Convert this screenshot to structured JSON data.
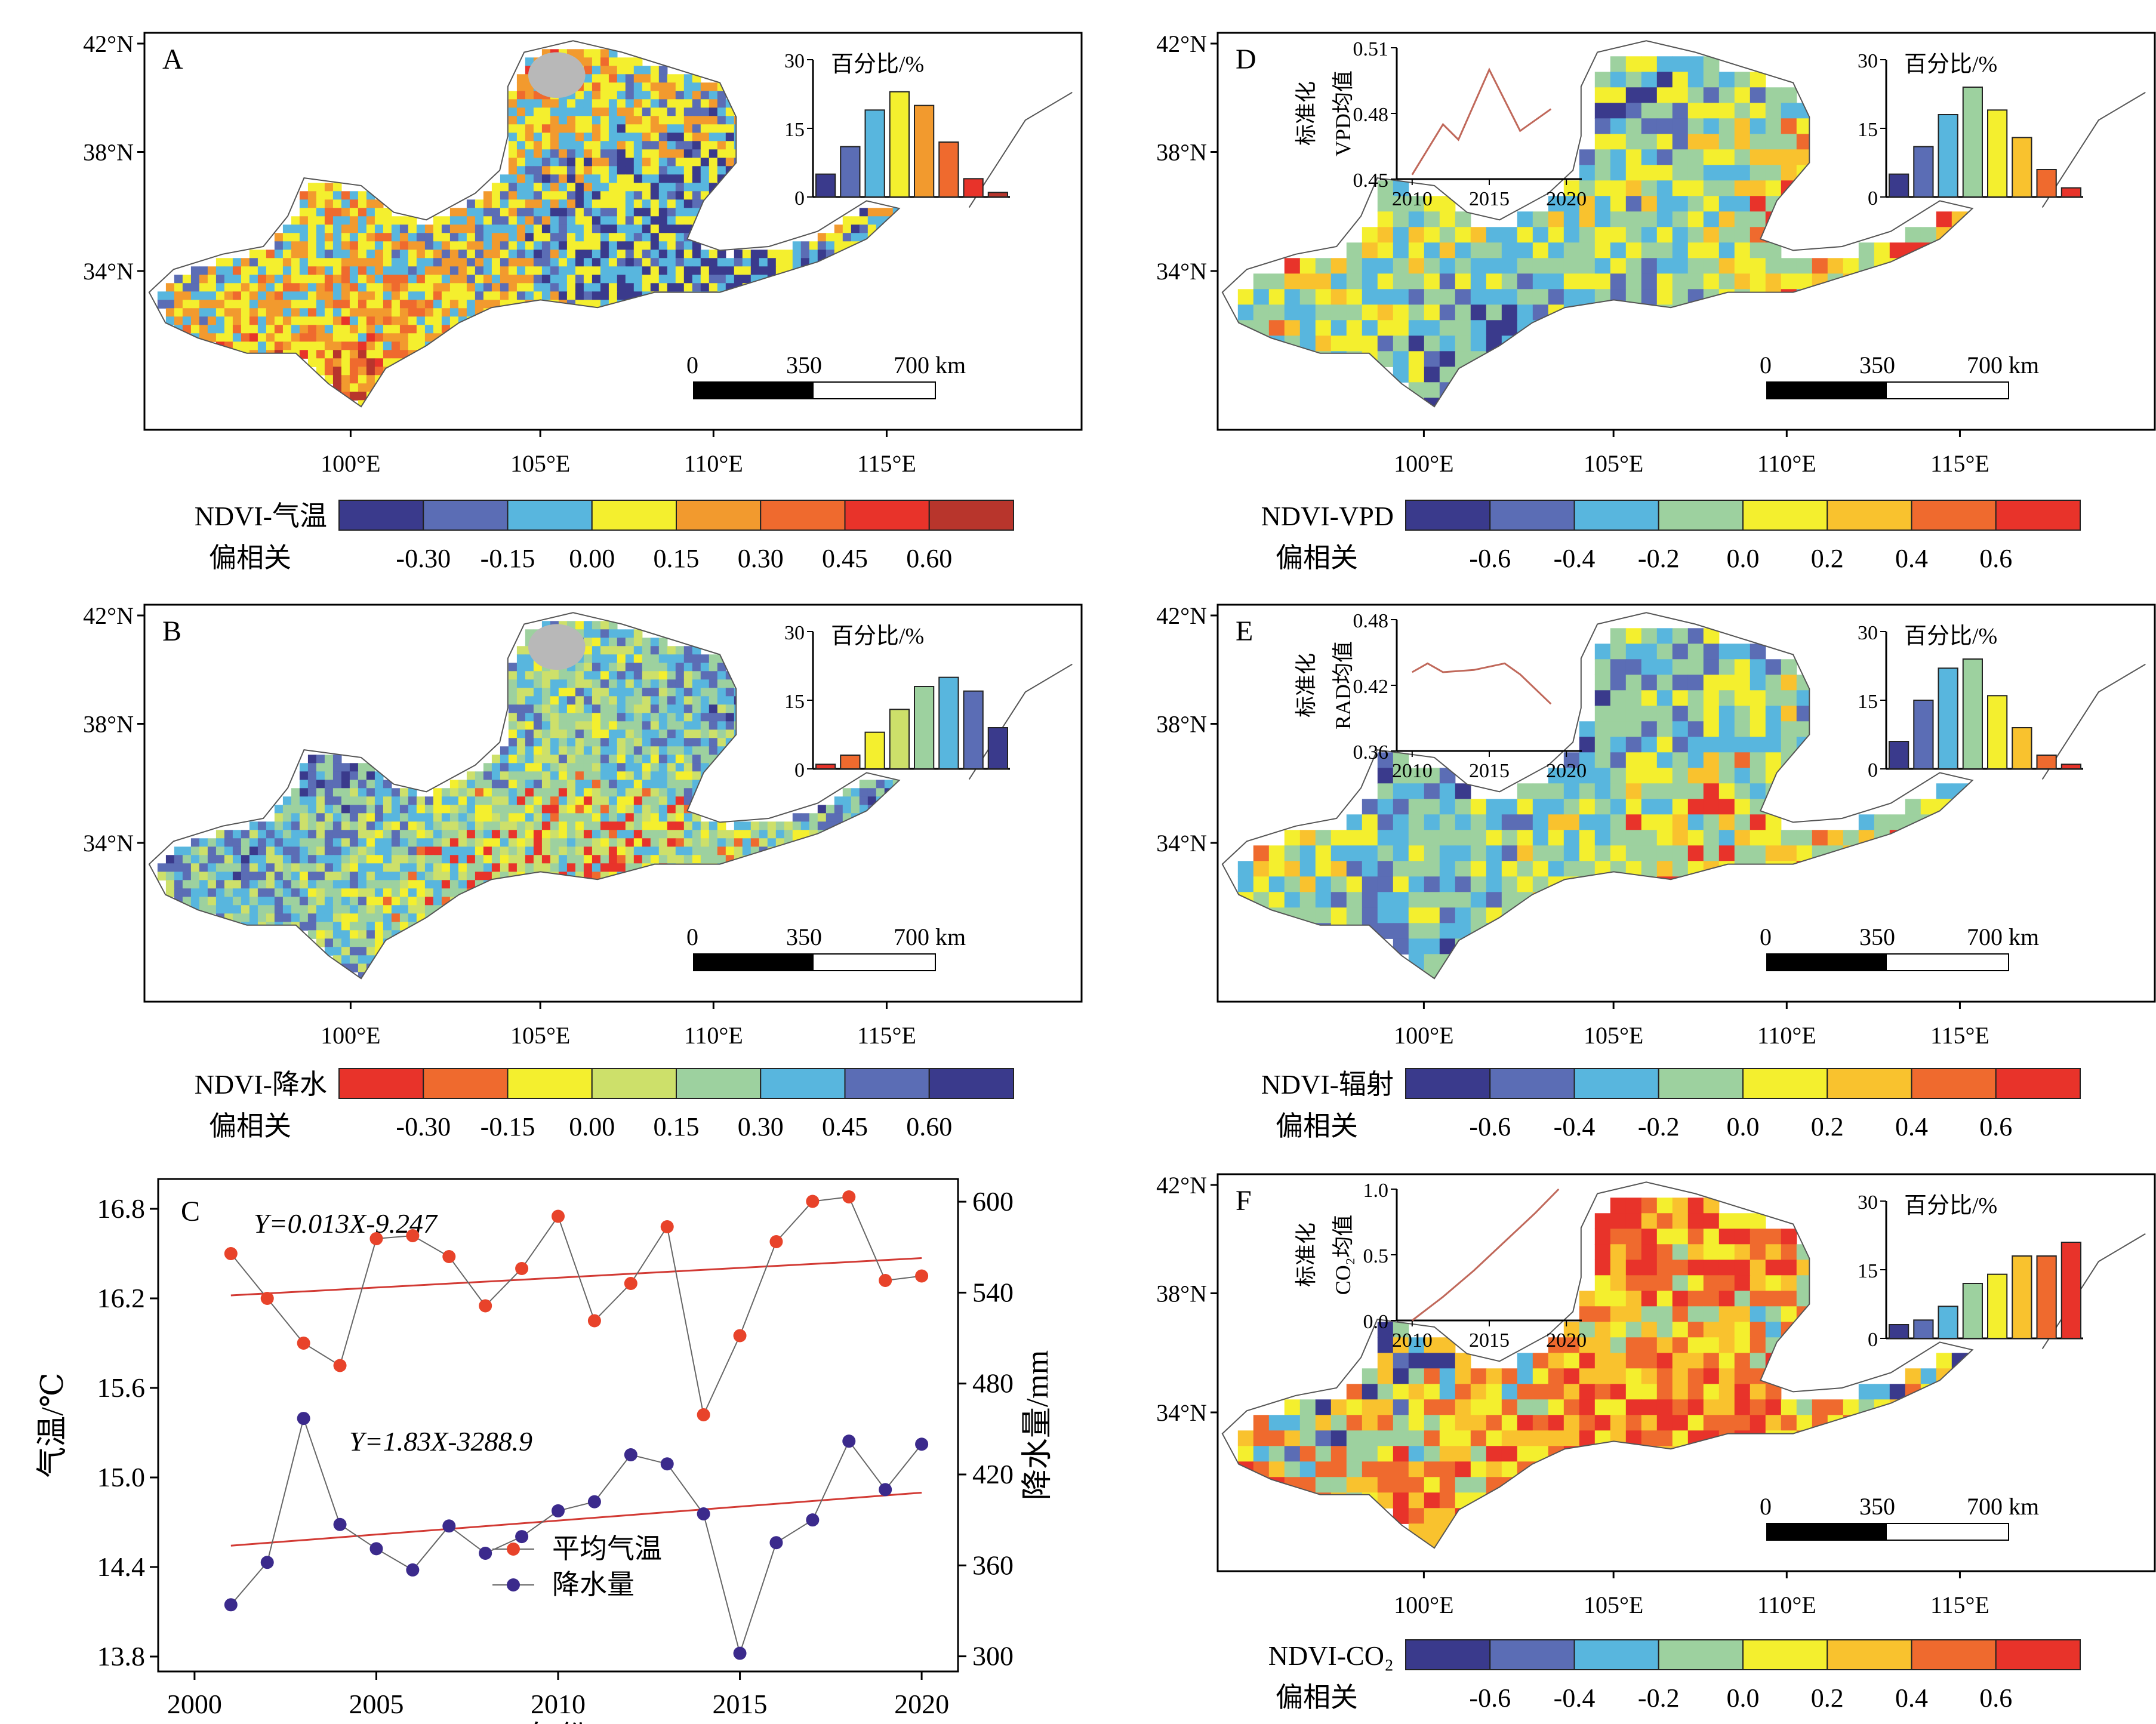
{
  "colors": {
    "corr8": [
      "#3a3a8c",
      "#5b6db5",
      "#58b6de",
      "#f4ef2e",
      "#f29a2e",
      "#ef6a2e",
      "#e8332a",
      "#b8352c"
    ],
    "precip8": [
      "#e8332a",
      "#ef6a2e",
      "#f4ef2e",
      "#cde06a",
      "#9dd19f",
      "#58b6de",
      "#5b6db5",
      "#3a3a8c"
    ],
    "vpd8": [
      "#3a3a8c",
      "#5b6db5",
      "#58b6de",
      "#9dd19f",
      "#f4ef2e",
      "#f9c22e",
      "#ef6a2e",
      "#e8332a"
    ],
    "temp_series": "#e8432a",
    "precip_series": "#3b2a8c",
    "trend": "#d23a34",
    "inset_curve": "#c0685a",
    "nodata": "#b8b8b8"
  },
  "panels": [
    {
      "letter": "A",
      "lat_ticks": [
        "42°N",
        "38°N",
        "34°N"
      ],
      "lon_ticks": [
        "100°E",
        "105°E",
        "110°E",
        "115°E"
      ],
      "scale_labels": [
        "0",
        "350",
        "700 km"
      ],
      "hist_title": "百分比/%",
      "hist_ticks": [
        "30",
        "15",
        "0"
      ],
      "hist_values": [
        5,
        11,
        19,
        23,
        20,
        12,
        4,
        1
      ],
      "legend_title": "NDVI-气温",
      "legend_sub": "偏相关",
      "legend_ticks": [
        "-0.30",
        "-0.15",
        "0.00",
        "0.15",
        "0.30",
        "0.45",
        "0.60"
      ],
      "palette": "corr8"
    },
    {
      "letter": "B",
      "lat_ticks": [
        "42°N",
        "38°N",
        "34°N"
      ],
      "lon_ticks": [
        "100°E",
        "105°E",
        "110°E",
        "115°E"
      ],
      "scale_labels": [
        "0",
        "350",
        "700 km"
      ],
      "hist_title": "百分比/%",
      "hist_ticks": [
        "30",
        "15",
        "0"
      ],
      "hist_values": [
        1,
        3,
        8,
        13,
        18,
        20,
        17,
        9
      ],
      "legend_title": "NDVI-降水",
      "legend_sub": "偏相关",
      "legend_ticks": [
        "-0.30",
        "-0.15",
        "0.00",
        "0.15",
        "0.30",
        "0.45",
        "0.60"
      ],
      "palette": "precip8"
    },
    {
      "letter": "D",
      "lat_ticks": [
        "42°N",
        "38°N",
        "34°N"
      ],
      "lon_ticks": [
        "100°E",
        "105°E",
        "110°E",
        "115°E"
      ],
      "scale_labels": [
        "0",
        "350",
        "700 km"
      ],
      "hist_title": "百分比/%",
      "hist_ticks": [
        "30",
        "15",
        "0"
      ],
      "hist_values": [
        5,
        11,
        18,
        24,
        19,
        13,
        6,
        2
      ],
      "inset_ylabel1": "标准化",
      "inset_ylabel2": "VPD均值",
      "inset_yticks": [
        "0.51",
        "0.48",
        "0.45"
      ],
      "inset_xticks": [
        "2010",
        "2015",
        "2020"
      ],
      "inset_curve": [
        [
          2010,
          0.452
        ],
        [
          2012,
          0.475
        ],
        [
          2013,
          0.468
        ],
        [
          2015,
          0.5
        ],
        [
          2017,
          0.472
        ],
        [
          2019,
          0.482
        ]
      ],
      "inset_ylim": [
        0.45,
        0.51
      ],
      "legend_title": "NDVI-VPD",
      "legend_sub": "偏相关",
      "legend_ticks": [
        "-0.6",
        "-0.4",
        "-0.2",
        "0.0",
        "0.2",
        "0.4",
        "0.6"
      ],
      "palette": "vpd8"
    },
    {
      "letter": "E",
      "lat_ticks": [
        "42°N",
        "38°N",
        "34°N"
      ],
      "lon_ticks": [
        "100°E",
        "105°E",
        "110°E",
        "115°E"
      ],
      "scale_labels": [
        "0",
        "350",
        "700 km"
      ],
      "hist_title": "百分比/%",
      "hist_ticks": [
        "30",
        "15",
        "0"
      ],
      "hist_values": [
        6,
        15,
        22,
        24,
        16,
        9,
        3,
        1
      ],
      "inset_ylabel1": "标准化",
      "inset_ylabel2": "RAD均值",
      "inset_yticks": [
        "0.48",
        "0.42",
        "0.36"
      ],
      "inset_xticks": [
        "2010",
        "2015",
        "2020"
      ],
      "inset_curve": [
        [
          2010,
          0.432
        ],
        [
          2011,
          0.44
        ],
        [
          2012,
          0.432
        ],
        [
          2014,
          0.434
        ],
        [
          2016,
          0.44
        ],
        [
          2017,
          0.43
        ],
        [
          2019,
          0.403
        ]
      ],
      "inset_ylim": [
        0.36,
        0.48
      ],
      "legend_title": "NDVI-辐射",
      "legend_sub": "偏相关",
      "legend_ticks": [
        "-0.6",
        "-0.4",
        "-0.2",
        "0.0",
        "0.2",
        "0.4",
        "0.6"
      ],
      "palette": "vpd8"
    },
    {
      "letter": "F",
      "lat_ticks": [
        "42°N",
        "38°N",
        "34°N"
      ],
      "lon_ticks": [
        "100°E",
        "105°E",
        "110°E",
        "115°E"
      ],
      "scale_labels": [
        "0",
        "350",
        "700 km"
      ],
      "hist_title": "百分比/%",
      "hist_ticks": [
        "30",
        "15",
        "0"
      ],
      "hist_values": [
        3,
        4,
        7,
        12,
        14,
        18,
        18,
        21
      ],
      "inset_ylabel1": "标准化",
      "inset_ylabel2": "CO₂均值",
      "inset_yticks": [
        "1.0",
        "0.5",
        "0.0"
      ],
      "inset_xticks": [
        "2010",
        "2015",
        "2020"
      ],
      "inset_curve": [
        [
          2010,
          0.0
        ],
        [
          2012,
          0.18
        ],
        [
          2014,
          0.38
        ],
        [
          2016,
          0.6
        ],
        [
          2018,
          0.82
        ],
        [
          2019.5,
          1.0
        ]
      ],
      "inset_ylim": [
        0.0,
        1.0
      ],
      "legend_title": "NDVI-CO₂",
      "legend_sub": "偏相关",
      "legend_ticks": [
        "-0.6",
        "-0.4",
        "-0.2",
        "0.0",
        "0.2",
        "0.4",
        "0.6"
      ],
      "palette": "vpd8"
    }
  ],
  "chart_data": {
    "type": "line",
    "panel_letter": "C",
    "xlabel": "年份",
    "ylabel_left": "气温/℃",
    "ylabel_right": "降水量/mm",
    "x": [
      2001,
      2002,
      2003,
      2004,
      2005,
      2006,
      2007,
      2008,
      2009,
      2010,
      2011,
      2012,
      2013,
      2014,
      2015,
      2016,
      2017,
      2018,
      2019,
      2020
    ],
    "xticks": [
      "2000",
      "2005",
      "2010",
      "2015",
      "2020"
    ],
    "xlim": [
      1999,
      2021
    ],
    "yticks_left": [
      "16.8",
      "16.2",
      "15.6",
      "15.0",
      "14.4",
      "13.8"
    ],
    "ylim_left": [
      13.7,
      17.0
    ],
    "yticks_right": [
      "600",
      "540",
      "480",
      "420",
      "360",
      "300"
    ],
    "ylim_right": [
      290,
      615
    ],
    "series": [
      {
        "name": "平均气温",
        "axis": "left",
        "values": [
          16.5,
          16.2,
          15.9,
          15.75,
          16.6,
          16.62,
          16.48,
          16.15,
          16.4,
          16.75,
          16.05,
          16.3,
          16.68,
          15.42,
          15.95,
          16.58,
          16.85,
          16.88,
          16.32,
          16.35
        ]
      },
      {
        "name": "降水量",
        "axis": "right",
        "values": [
          334,
          362,
          457,
          387,
          371,
          357,
          386,
          368,
          379,
          396,
          402,
          433,
          427,
          394,
          302,
          375,
          390,
          442,
          410,
          440
        ]
      }
    ],
    "trendlines": [
      {
        "label": "Y=0.013X-9.247",
        "axis": "left",
        "x0": 2001,
        "y0": 16.22,
        "x1": 2020,
        "y1": 16.47
      },
      {
        "label": "Y=1.83X-3288.9",
        "axis": "right",
        "x0": 2001,
        "y0": 373,
        "x1": 2020,
        "y1": 408
      }
    ]
  }
}
